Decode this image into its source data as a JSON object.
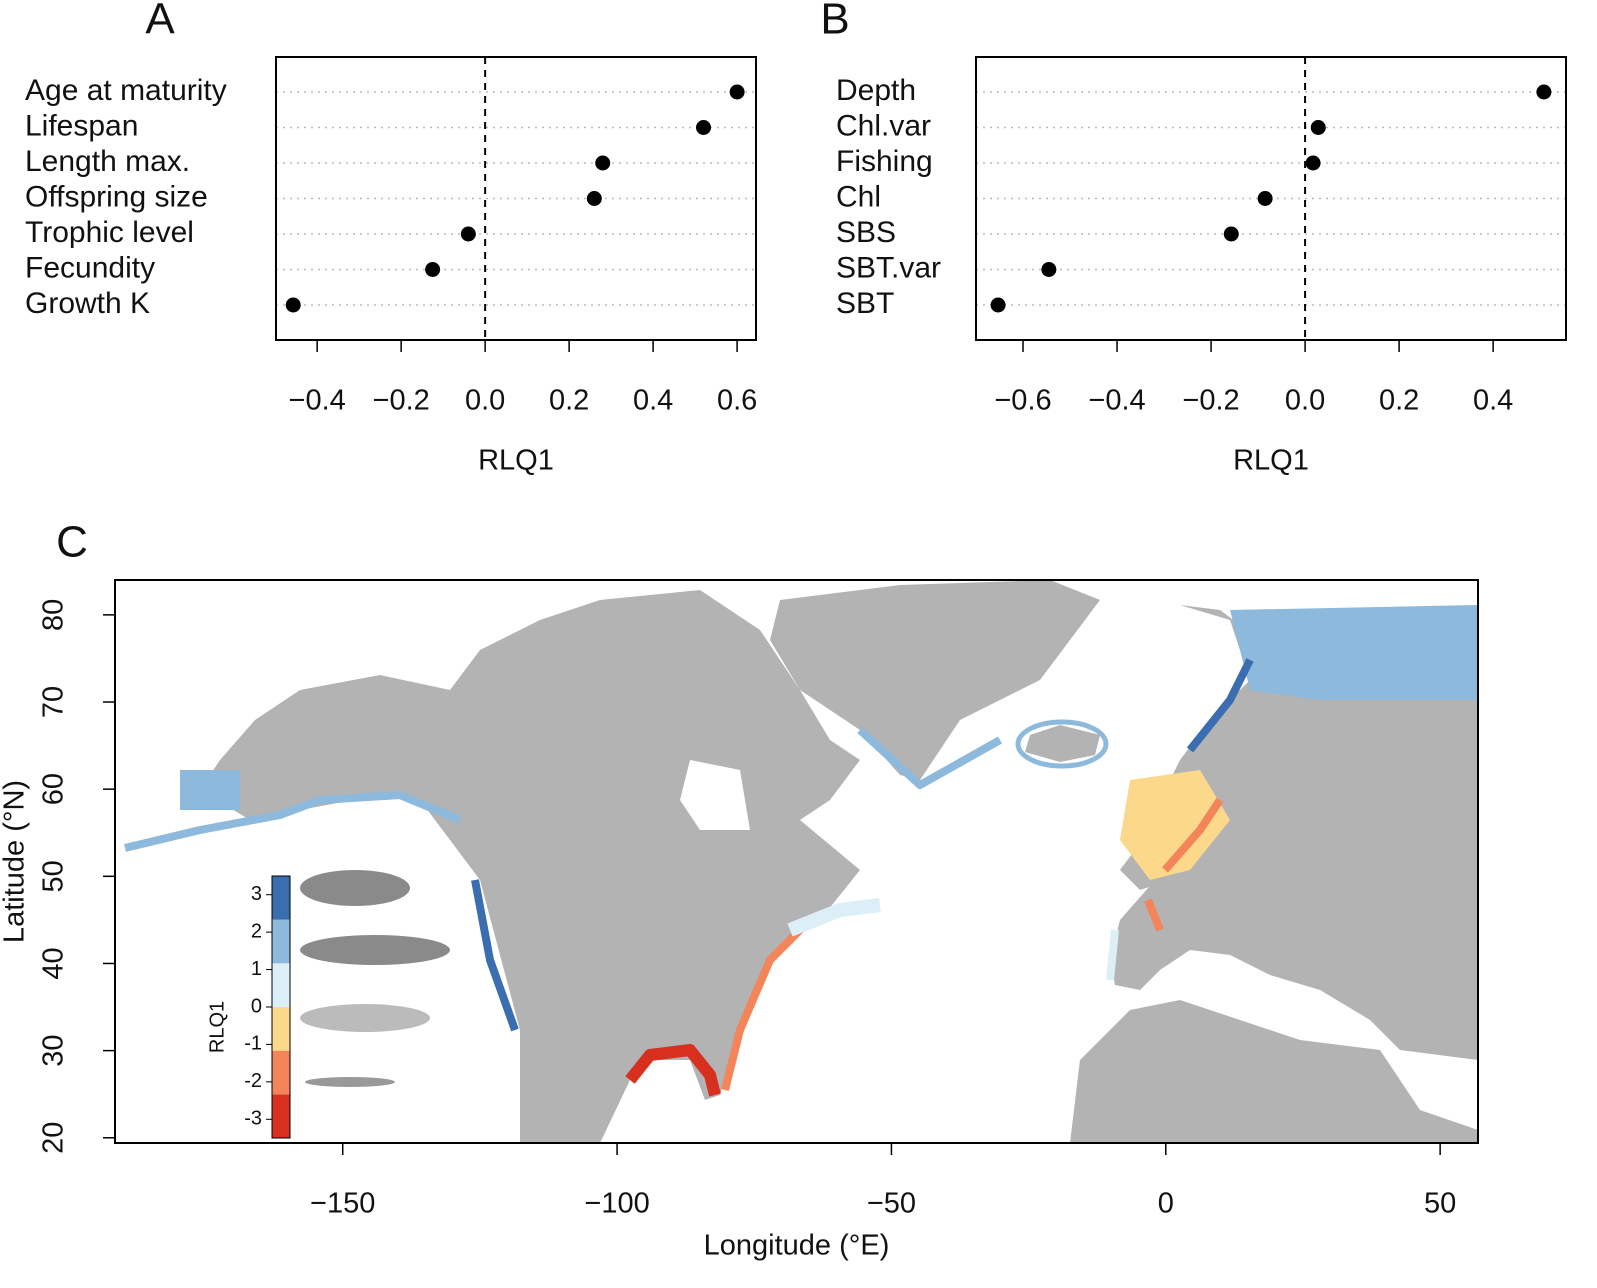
{
  "chart_data": [
    {
      "type": "dot",
      "panel_label": "A",
      "xlabel": "RLQ1",
      "categories": [
        "Age at maturity",
        "Lifespan",
        "Length max.",
        "Offspring size",
        "Trophic level",
        "Fecundity",
        "Growth K"
      ],
      "values": [
        0.6,
        0.52,
        0.28,
        0.26,
        -0.04,
        -0.125,
        -0.457
      ],
      "color": "#000000",
      "xlim": [
        -0.498,
        0.645
      ],
      "xticks": [
        {
          "value": -0.4,
          "label": "−0.4"
        },
        {
          "value": -0.2,
          "label": "−0.2"
        },
        {
          "value": 0,
          "label": "0.0"
        },
        0.2,
        0.4,
        0.6
      ],
      "ref_line": 0,
      "grid": true
    },
    {
      "type": "dot",
      "panel_label": "B",
      "xlabel": "RLQ1",
      "categories": [
        "Depth",
        "Chl.var",
        "Fishing",
        "Chl",
        "SBS",
        "SBT.var",
        "SBT"
      ],
      "values": [
        0.508,
        0.028,
        0.017,
        -0.085,
        -0.157,
        -0.545,
        -0.653
      ],
      "color": "#000000",
      "xlim": [
        -0.7,
        0.555
      ],
      "xticks": [
        {
          "value": -0.6,
          "label": "−0.6"
        },
        {
          "value": -0.4,
          "label": "−0.4"
        },
        {
          "value": -0.2,
          "label": "−0.2"
        },
        {
          "value": 0,
          "label": "0.0"
        },
        0.2,
        0.4
      ],
      "ref_line": 0,
      "grid": true
    },
    {
      "type": "map",
      "panel_label": "C",
      "xlabel": "Longitude (°E)",
      "ylabel": "Latitude (°N)",
      "xlim": [
        -191.5,
        56.9
      ],
      "ylim": [
        19.4,
        84.0
      ],
      "xticks": [
        {
          "value": -150,
          "label": "−150"
        },
        {
          "value": -100,
          "label": "−100"
        },
        {
          "value": -50,
          "label": "−50"
        },
        0,
        50
      ],
      "yticks": [
        20,
        30,
        40,
        50,
        60,
        70,
        80
      ],
      "colorbar": {
        "title": "RLQ1",
        "lim": [
          -3.5,
          3.5
        ],
        "ticks": [
          -3,
          -2,
          -1,
          0,
          1,
          2,
          3
        ],
        "colors": [
          "#d7301f",
          "#f4845a",
          "#fcd98a",
          "#dceff7",
          "#8db9dc",
          "#3a6eb0"
        ]
      }
    }
  ]
}
